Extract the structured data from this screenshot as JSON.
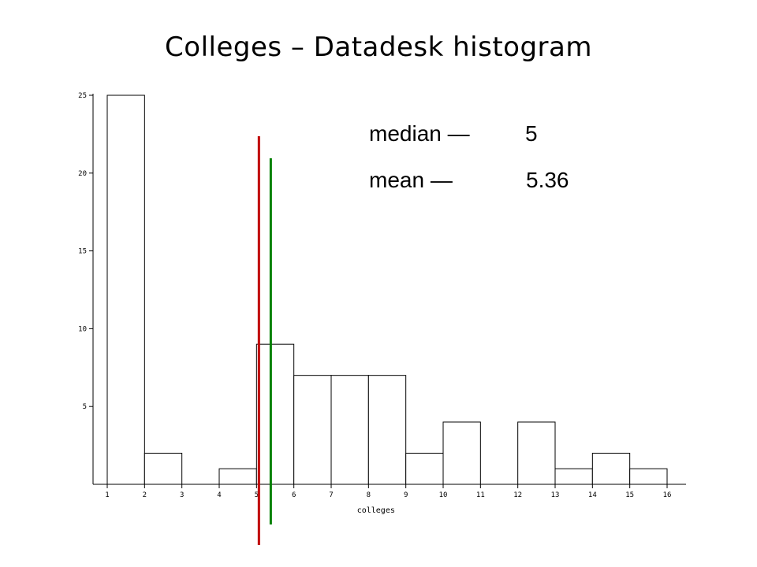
{
  "slide": {
    "title": "Colleges – Datadesk histogram"
  },
  "legend": {
    "median_label": "median —",
    "median_value": "5",
    "mean_label": "mean —",
    "mean_value": "5.36"
  },
  "chart_data": {
    "type": "bar",
    "title": "Colleges – Datadesk histogram",
    "xlabel": "colleges",
    "ylabel": "",
    "bins": [
      {
        "start": 1,
        "end": 2,
        "count": 25
      },
      {
        "start": 2,
        "end": 3,
        "count": 2
      },
      {
        "start": 3,
        "end": 4,
        "count": 0
      },
      {
        "start": 4,
        "end": 5,
        "count": 1
      },
      {
        "start": 5,
        "end": 6,
        "count": 9
      },
      {
        "start": 6,
        "end": 7,
        "count": 7
      },
      {
        "start": 7,
        "end": 8,
        "count": 7
      },
      {
        "start": 8,
        "end": 9,
        "count": 7
      },
      {
        "start": 9,
        "end": 10,
        "count": 2
      },
      {
        "start": 10,
        "end": 11,
        "count": 4
      },
      {
        "start": 11,
        "end": 12,
        "count": 0
      },
      {
        "start": 12,
        "end": 13,
        "count": 4
      },
      {
        "start": 13,
        "end": 14,
        "count": 1
      },
      {
        "start": 14,
        "end": 15,
        "count": 2
      },
      {
        "start": 15,
        "end": 16,
        "count": 1
      }
    ],
    "xticks": [
      1,
      2,
      3,
      4,
      5,
      6,
      7,
      8,
      9,
      10,
      11,
      12,
      13,
      14,
      15,
      16
    ],
    "yticks": [
      5,
      10,
      15,
      20,
      25
    ],
    "xlim": [
      0.7,
      17.5
    ],
    "ylim": [
      0,
      25
    ],
    "median": 5,
    "mean": 5.36,
    "median_color": "#c00000",
    "mean_color": "#008000",
    "grid": false
  }
}
